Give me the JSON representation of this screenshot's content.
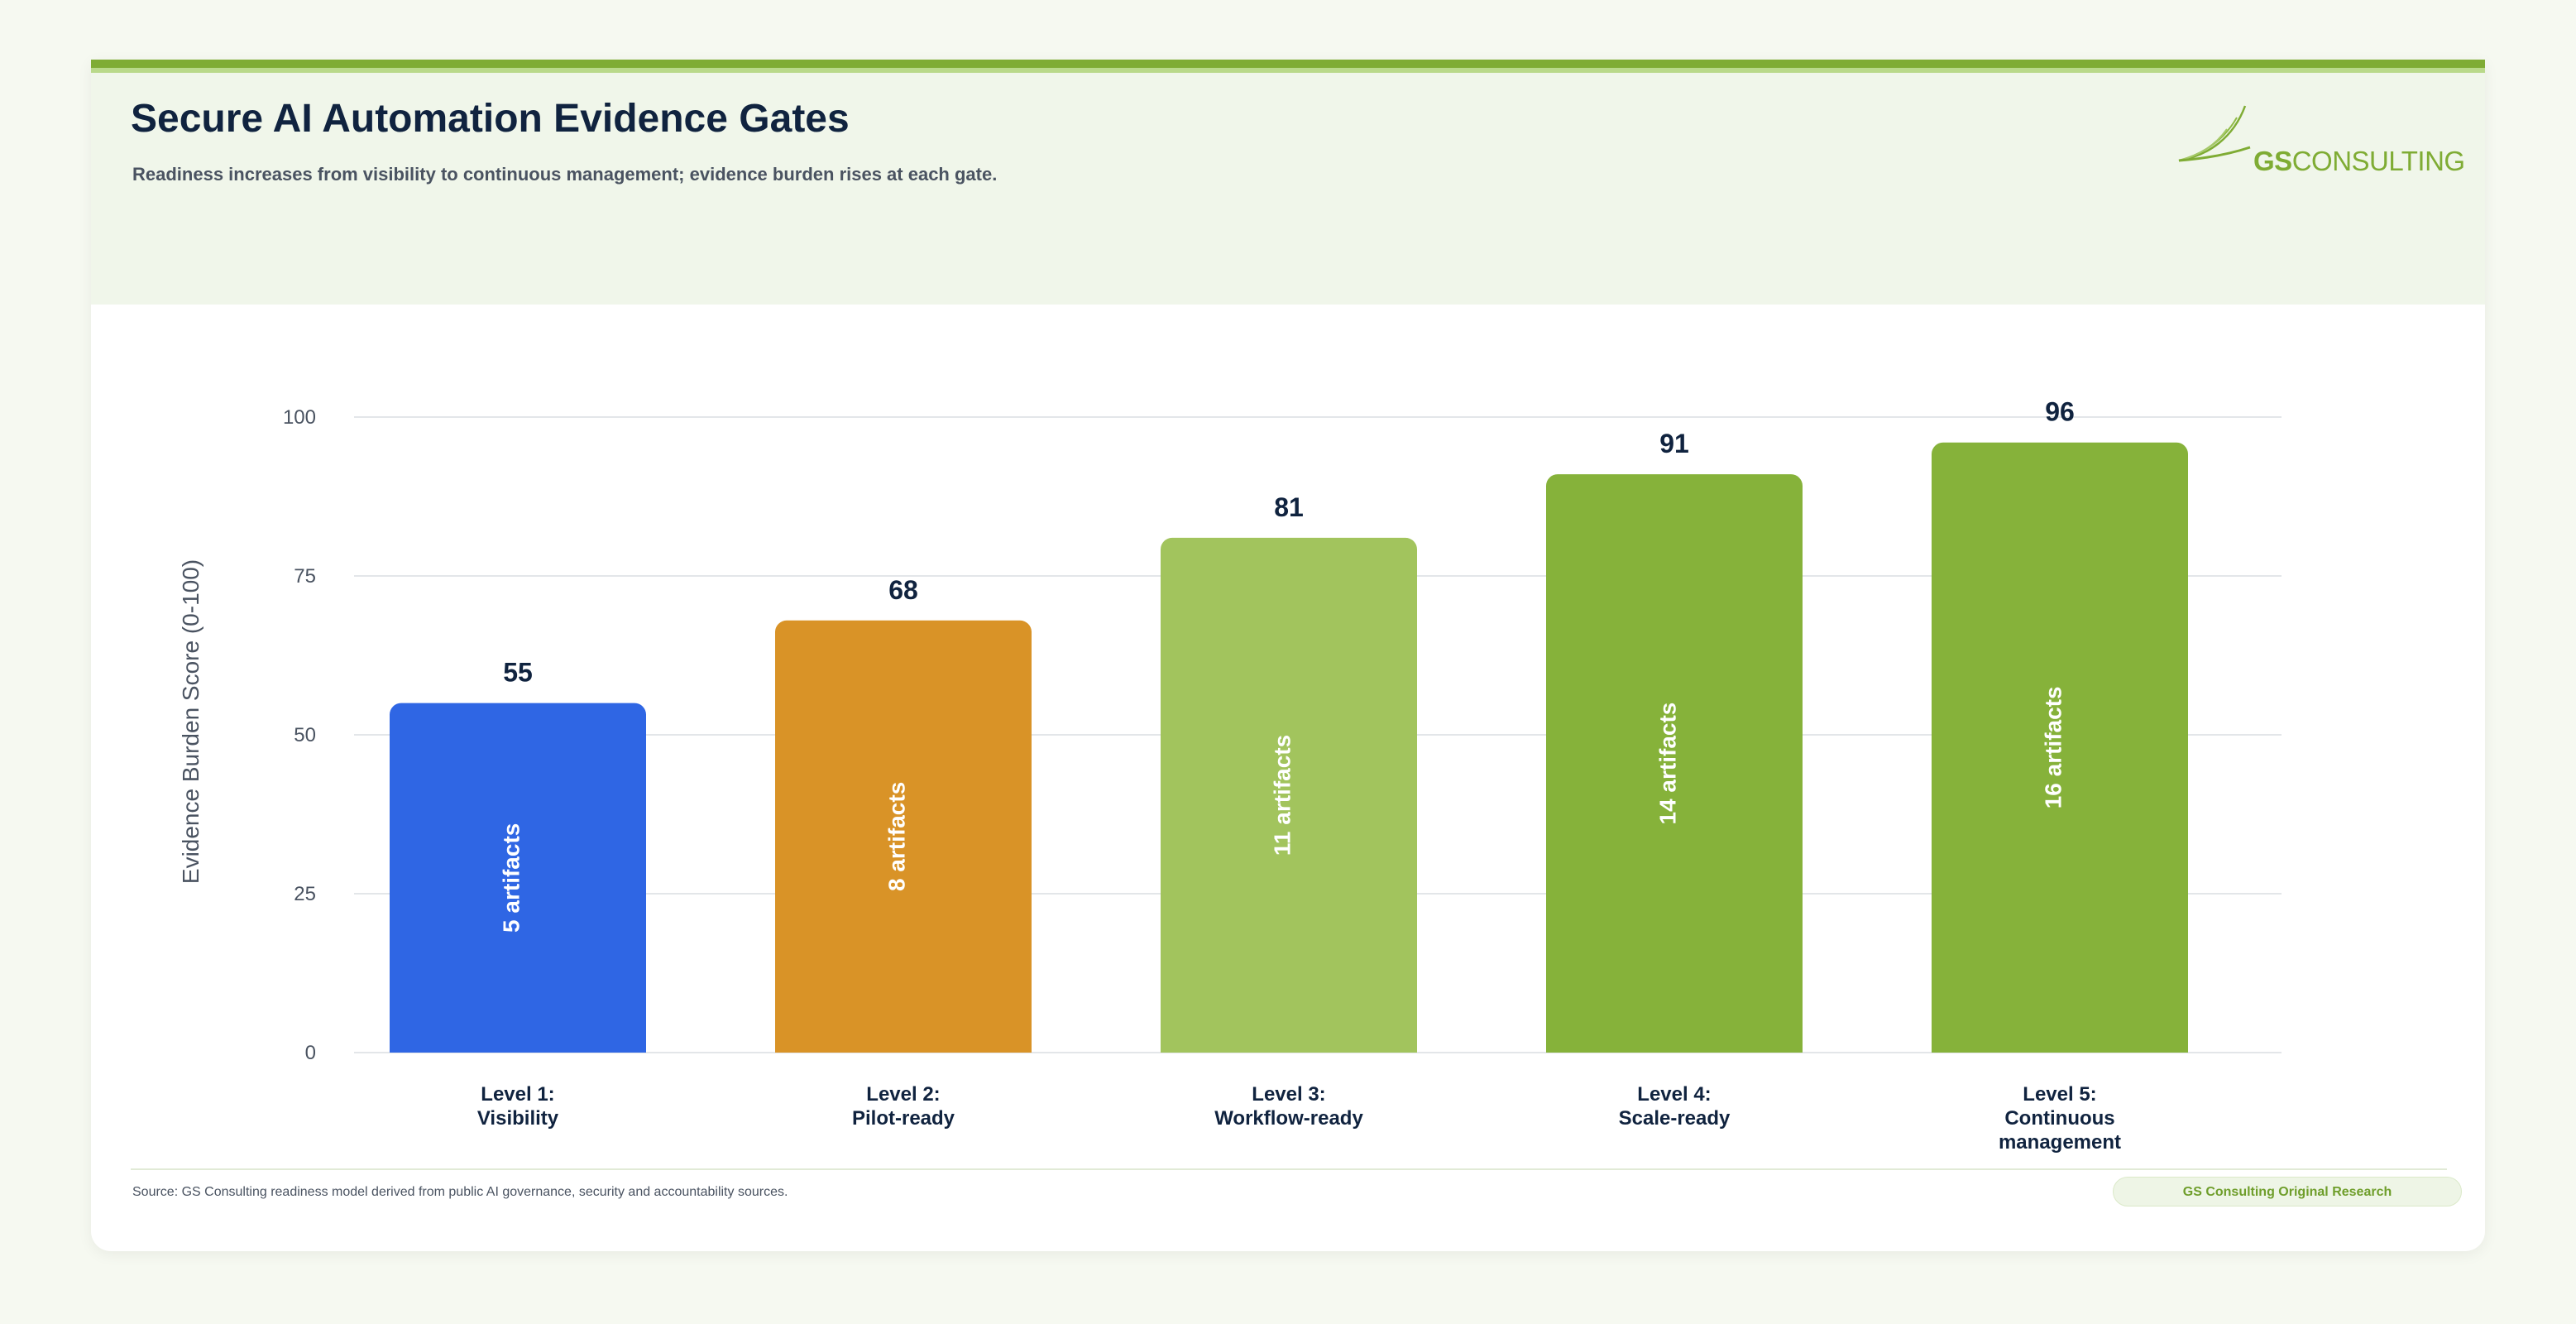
{
  "header": {
    "title": "Secure AI Automation Evidence Gates",
    "subtitle": "Readiness increases from visibility to continuous management; evidence burden rises at each gate."
  },
  "logo": {
    "text_bold": "GS",
    "text_regular": "CONSULTING",
    "color": "#7fac34"
  },
  "chart_data": {
    "type": "bar",
    "title": "",
    "xlabel": "",
    "ylabel": "Evidence Burden Score (0-100)",
    "ylim": [
      0,
      100
    ],
    "yticks": [
      0,
      25,
      50,
      75,
      100
    ],
    "grid": true,
    "categories": [
      [
        "Level 1:",
        "Visibility"
      ],
      [
        "Level 2:",
        "Pilot-ready"
      ],
      [
        "Level 3:",
        "Workflow-ready"
      ],
      [
        "Level 4:",
        "Scale-ready"
      ],
      [
        "Level 5:",
        "Continuous",
        "management"
      ]
    ],
    "values": [
      55,
      68,
      81,
      91,
      96
    ],
    "bar_labels": [
      "5 artifacts",
      "8 artifacts",
      "11 artifacts",
      "14 artifacts",
      "16 artifacts"
    ],
    "colors": [
      "#2f66e4",
      "#d99327",
      "#a2c45d",
      "#86b23a",
      "#86b23a"
    ]
  },
  "footer": {
    "source": "Source: GS Consulting readiness model derived from public AI governance, security and accountability sources.",
    "badge": "GS Consulting Original Research"
  }
}
